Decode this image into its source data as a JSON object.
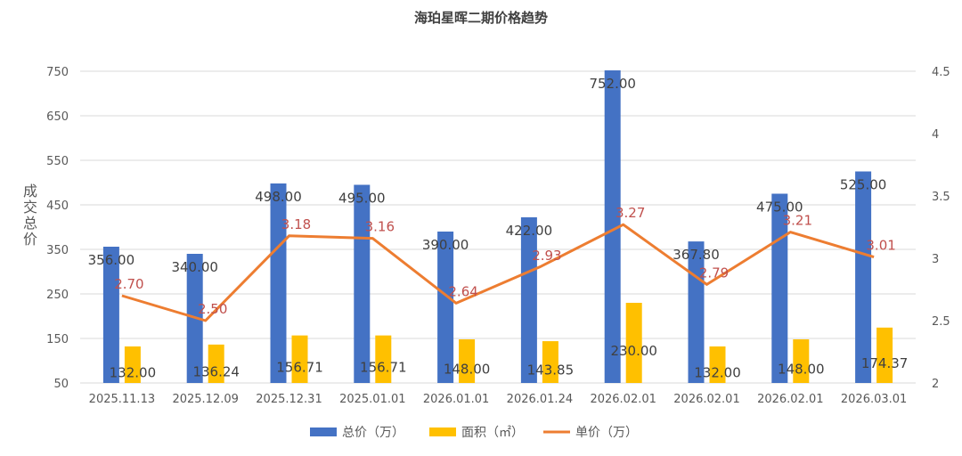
{
  "chart_data": {
    "type": "bar",
    "title": "海珀星晖二期价格趋势",
    "ylabel": "成交总价",
    "ylabel_right": "",
    "categories": [
      "2025.11.13",
      "2025.12.09",
      "2025.12.31",
      "2025.01.01",
      "2026.01.01",
      "2026.01.24",
      "2026.02.01",
      "2026.02.01",
      "2026.02.01",
      "2026.03.01"
    ],
    "ylim": [
      50,
      750
    ],
    "yticks": [
      "50",
      "150",
      "250",
      "350",
      "450",
      "550",
      "650",
      "750"
    ],
    "ylim_right": [
      2,
      4.5
    ],
    "yticks_right": [
      "2",
      "2.5",
      "3",
      "3.5",
      "4",
      "4.5"
    ],
    "grid": true,
    "legend_position": "bottom",
    "series": [
      {
        "name": "总价（万）",
        "kind": "bar",
        "axis": "left",
        "color": "#4472C4",
        "values": [
          356,
          340,
          498,
          495,
          390,
          422,
          752,
          367.8,
          475,
          525
        ],
        "labels": [
          "356.00",
          "340.00",
          "498.00",
          "495.00",
          "390.00",
          "422.00",
          "752.00",
          "367.80",
          "475.00",
          "525.00"
        ]
      },
      {
        "name": "面积（㎡）",
        "kind": "bar",
        "axis": "left",
        "color": "#FFC000",
        "values": [
          132,
          136.24,
          156.71,
          156.71,
          148,
          143.85,
          230,
          132,
          148,
          174.37
        ],
        "labels": [
          "132.00",
          "136.24",
          "156.71",
          "156.71",
          "148.00",
          "143.85",
          "230.00",
          "132.00",
          "148.00",
          "174.37"
        ]
      },
      {
        "name": "单价（万）",
        "kind": "line",
        "axis": "right",
        "color": "#ED7D31",
        "label_color": "#C0504D",
        "values": [
          2.7,
          2.5,
          3.18,
          3.16,
          2.64,
          2.93,
          3.27,
          2.79,
          3.21,
          3.01
        ],
        "labels": [
          "2.70",
          "2.50",
          "3.18",
          "3.16",
          "2.64",
          "2.93",
          "3.27",
          "2.79",
          "3.21",
          "3.01"
        ]
      }
    ]
  }
}
